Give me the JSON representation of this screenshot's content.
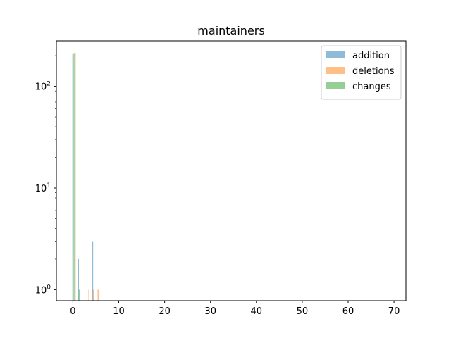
{
  "chart_data": {
    "type": "bar",
    "title": "maintainers",
    "xlabel": "",
    "ylabel": "",
    "xlim": [
      -3.6,
      72.6
    ],
    "ylim": [
      0.78,
      280
    ],
    "yscale": "log",
    "grid": false,
    "legend_position": "top-right",
    "x_ticks": [
      {
        "value": 0,
        "label": "0"
      },
      {
        "value": 10,
        "label": "10"
      },
      {
        "value": 20,
        "label": "20"
      },
      {
        "value": 30,
        "label": "30"
      },
      {
        "value": 40,
        "label": "40"
      },
      {
        "value": 50,
        "label": "50"
      },
      {
        "value": 60,
        "label": "60"
      },
      {
        "value": 70,
        "label": "70"
      }
    ],
    "y_ticks": [
      {
        "value": 1,
        "base": "10",
        "exp": "0"
      },
      {
        "value": 10,
        "base": "10",
        "exp": "1"
      },
      {
        "value": 100,
        "base": "10",
        "exp": "2"
      }
    ],
    "bar_width": 0.23,
    "series": [
      {
        "name": "addition",
        "color": "#1f77b4",
        "bars": [
          {
            "x": 0.0,
            "y": 210
          },
          {
            "x": 1.2,
            "y": 2
          },
          {
            "x": 4.3,
            "y": 3
          }
        ]
      },
      {
        "name": "deletions",
        "color": "#ff7f0e",
        "bars": [
          {
            "x": 0.5,
            "y": 215
          },
          {
            "x": 3.5,
            "y": 1
          },
          {
            "x": 4.5,
            "y": 1
          },
          {
            "x": 5.5,
            "y": 1
          }
        ]
      },
      {
        "name": "changes",
        "color": "#2ca02c",
        "bars": [
          {
            "x": 0.25,
            "y": 212
          },
          {
            "x": 1.4,
            "y": 1
          }
        ]
      }
    ]
  }
}
